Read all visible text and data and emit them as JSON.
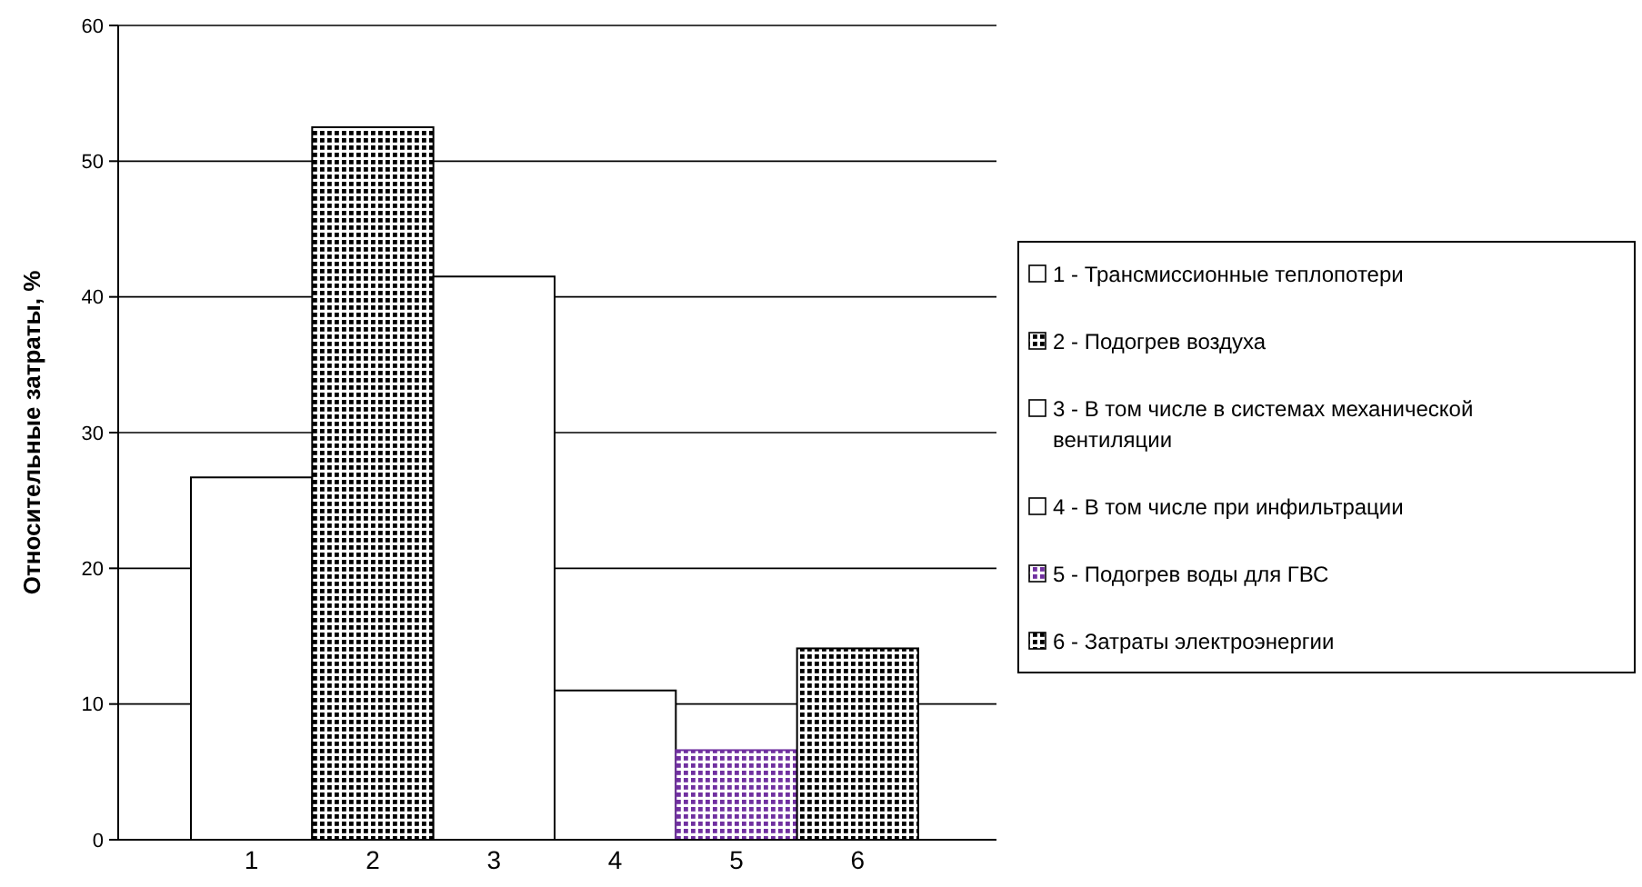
{
  "chart_data": {
    "type": "bar",
    "ylabel": "Относительные затраты, %",
    "categories": [
      "1",
      "2",
      "3",
      "4",
      "5",
      "6"
    ],
    "series": [
      {
        "name": "1 - Трансмиссионные теплопотери",
        "color": "#ffffff",
        "values": [
          26.7,
          null,
          null,
          null,
          null,
          null
        ]
      },
      {
        "name": "2 - Подогрев воздуха",
        "color": "#000000",
        "values": [
          null,
          52.5,
          null,
          null,
          null,
          null
        ]
      },
      {
        "name": "3 - В том числе в системах механической вентиляции",
        "color": "#ffffff",
        "values": [
          null,
          null,
          41.5,
          null,
          null,
          null
        ]
      },
      {
        "name": "4 - В том числе при инфильтрации",
        "color": "#ffffff",
        "values": [
          null,
          null,
          null,
          11.0,
          null,
          null
        ]
      },
      {
        "name": "5 - Подогрев воды для ГВС",
        "color": "#7030a0",
        "values": [
          null,
          null,
          null,
          null,
          6.6,
          null
        ]
      },
      {
        "name": "6 - Затраты электроэнергии",
        "color": "#000000",
        "values": [
          null,
          null,
          null,
          null,
          null,
          14.1
        ]
      }
    ],
    "ylim": [
      0,
      60
    ],
    "yticks": [
      0,
      10,
      20,
      30,
      40,
      50,
      60
    ],
    "grid": "y",
    "legend": "right"
  }
}
